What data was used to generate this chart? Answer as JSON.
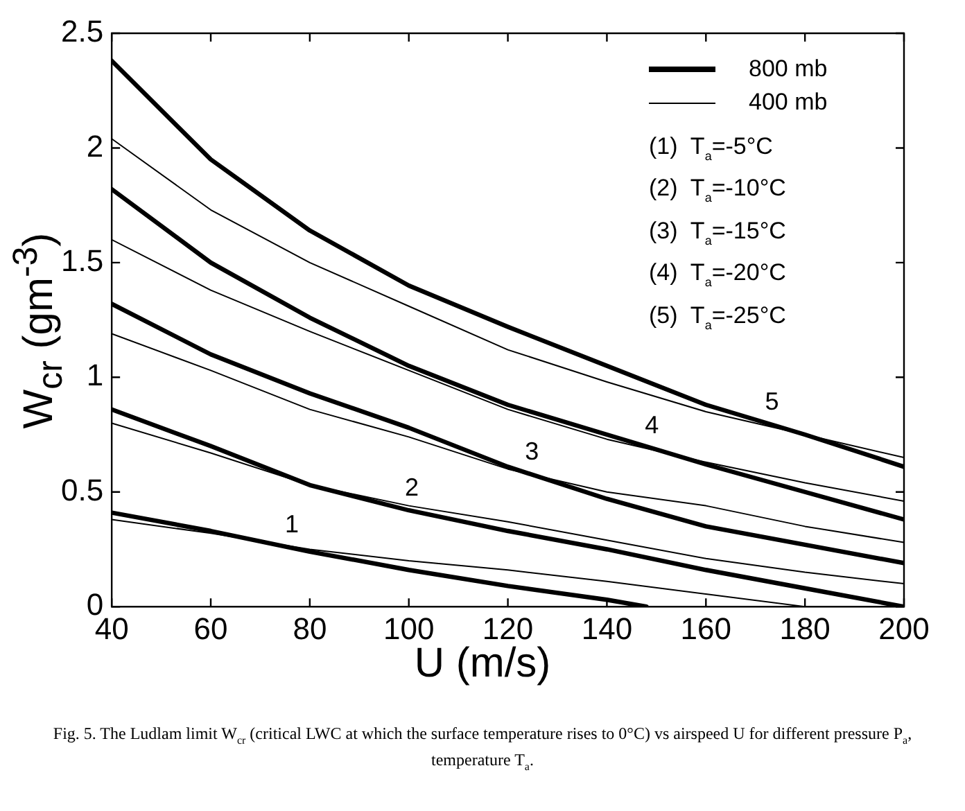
{
  "chart_data": {
    "type": "line",
    "xlabel": "U (m/s)",
    "ylabel": "W$_{cr}$ (gm$^{-3}$)",
    "x": [
      40,
      60,
      80,
      100,
      120,
      140,
      160,
      180,
      200
    ],
    "xlim": [
      40,
      200
    ],
    "xticks": [
      40,
      60,
      80,
      100,
      120,
      140,
      160,
      180,
      200
    ],
    "ylim": [
      0,
      2.5
    ],
    "yticks": [
      0,
      0.5,
      1,
      1.5,
      2,
      2.5
    ],
    "grid": false,
    "legend": "top right",
    "marker": "none",
    "line_style": "solid",
    "series": [
      {
        "name": "800 mb",
        "color": "#000000",
        "values": [
          2.38,
          1.95,
          1.64,
          1.4,
          1.22,
          1.05,
          0.88,
          0.75,
          0.61
        ]
      },
      {
        "name": "400 mb",
        "color": "#000000",
        "values": [
          2.04,
          1.73,
          1.5,
          1.31,
          1.12,
          0.98,
          0.85,
          0.75,
          0.65
        ]
      },
      {
        "color": "#000000",
        "values": [
          1.82,
          1.5,
          1.26,
          1.05,
          0.88,
          0.75,
          0.62,
          0.5,
          0.38
        ]
      },
      {
        "color": "#000000",
        "values": [
          1.6,
          1.38,
          1.2,
          1.03,
          0.86,
          0.73,
          0.63,
          0.54,
          0.46
        ]
      },
      {
        "color": "#000000",
        "values": [
          1.32,
          1.1,
          0.93,
          0.78,
          0.61,
          0.47,
          0.35,
          0.27,
          0.19
        ]
      },
      {
        "color": "#000000",
        "values": [
          1.19,
          1.03,
          0.86,
          0.74,
          0.6,
          0.5,
          0.44,
          0.35,
          0.28
        ]
      },
      {
        "color": "#000000",
        "values": [
          0.86,
          0.7,
          0.53,
          0.42,
          0.33,
          0.25,
          0.16,
          0.08,
          0
        ]
      },
      {
        "color": "#000000",
        "values": [
          0.8,
          0.67,
          0.53,
          0.44,
          0.37,
          0.29,
          0.21,
          0.15,
          0.1
        ]
      },
      {
        "color": "#000000",
        "x": [
          40,
          60,
          80,
          100,
          120,
          140,
          148
        ],
        "values": [
          0.41,
          0.33,
          0.24,
          0.16,
          0.09,
          0.03,
          0
        ]
      },
      {
        "color": "#000000",
        "values": [
          0.38,
          0.32,
          0.25,
          0.2,
          0.16,
          0.11,
          0.055,
          0,
          null
        ]
      }
    ],
    "annotations": [
      "1",
      "2",
      "3",
      "4",
      "5",
      "(1)  T$_{a}$=-5°C",
      "(2)  T$_{a}$=-10°C",
      "(3)  T$_{a}$=-15°C",
      "(4)  T$_{a}$=-20°C",
      "(5)  T$_{a}$=-25°C",
      "Fig. 5. The Ludlam limit W$_{cr}$ (critical LWC at which the surface temperature rises to 0°C) vs airspeed U for different pressure P$_{a}$, temperature T$_{a}$."
    ]
  }
}
